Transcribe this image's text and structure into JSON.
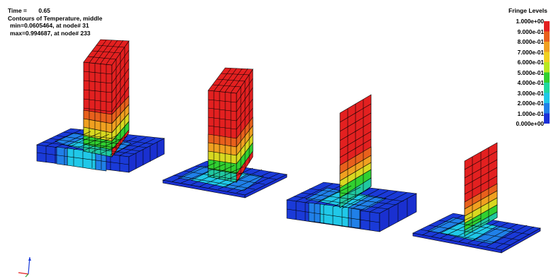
{
  "header": {
    "time_label": "Time =",
    "time_value": "0.65",
    "title": "Contours of Temperature, middle",
    "min_line": "min=0.0605464, at node# 31",
    "max_line": "max=0.994687, at node# 233"
  },
  "legend": {
    "title": "Fringe Levels",
    "levels": [
      "1.000e+00",
      "9.000e-01",
      "8.000e-01",
      "7.000e-01",
      "6.000e-01",
      "5.000e-01",
      "4.000e-01",
      "3.000e-01",
      "2.000e-01",
      "1.000e-01",
      "0.000e+00"
    ],
    "colors": [
      "#e32020",
      "#e8601c",
      "#f0a020",
      "#f0d020",
      "#b8e820",
      "#30d030",
      "#20d8a0",
      "#20c8e8",
      "#2080e8",
      "#1a30d8"
    ]
  },
  "colors": {
    "cold": "#1a3ad8",
    "mid": "#20c8e8",
    "hot": "#e32020",
    "mesh": "#000000"
  }
}
